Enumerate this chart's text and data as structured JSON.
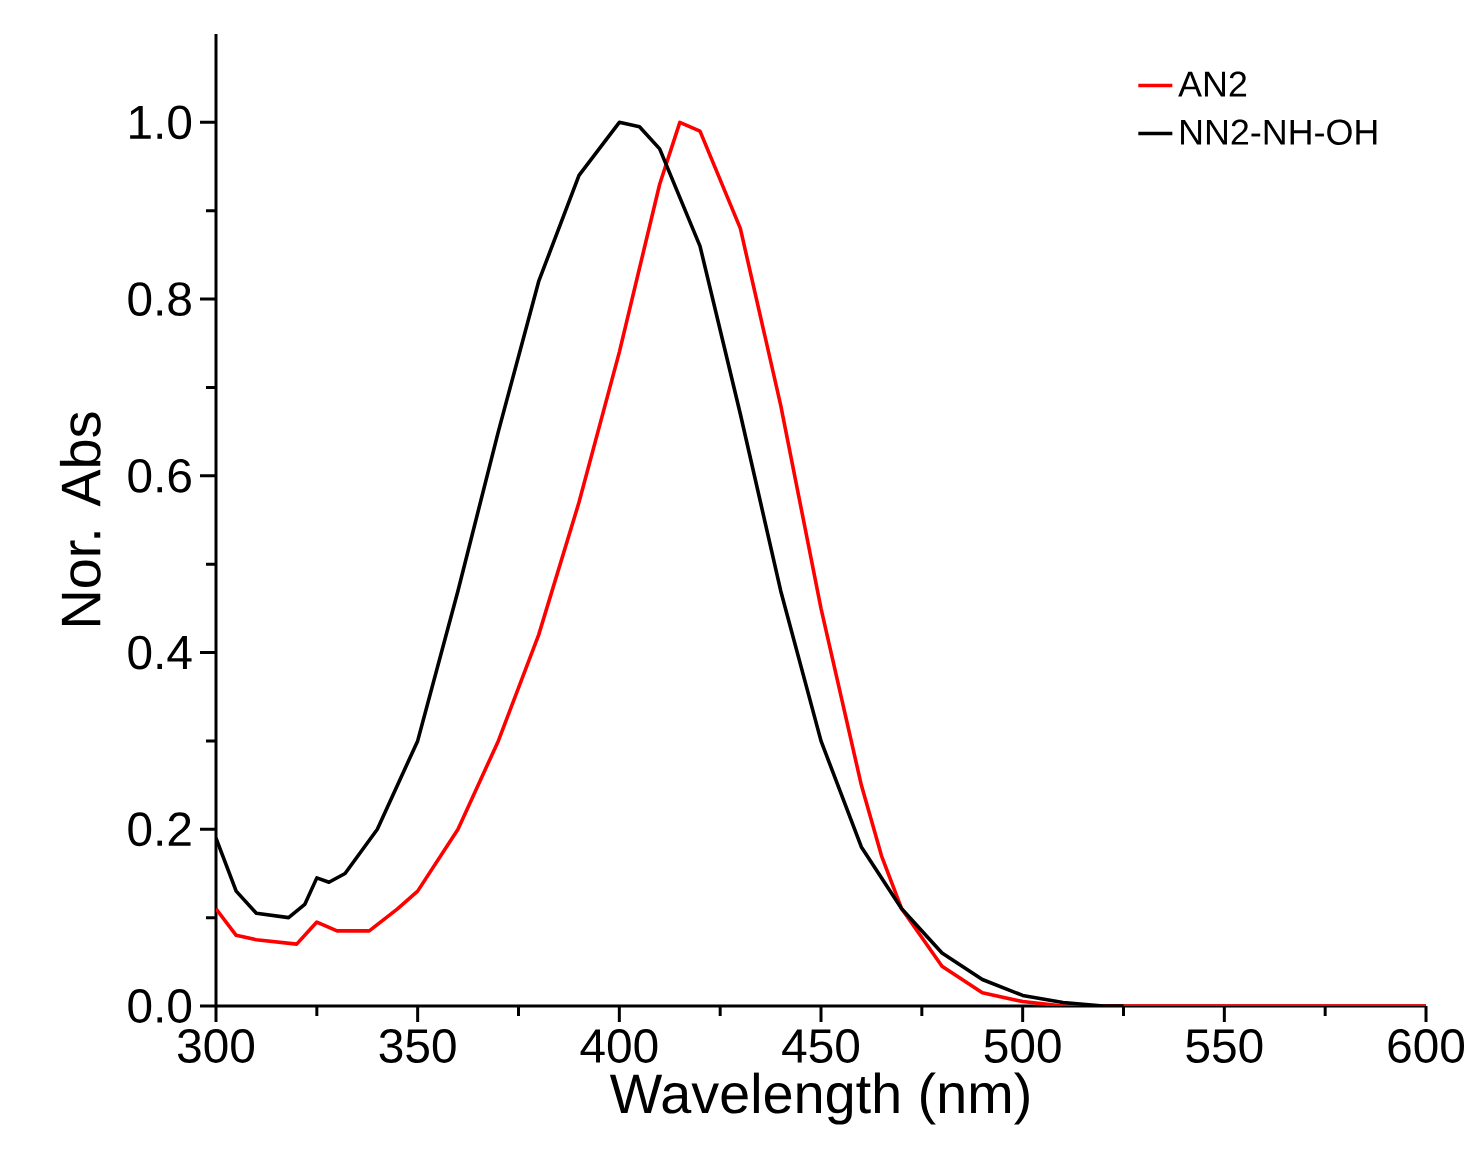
{
  "chart_data": {
    "type": "line",
    "xlabel": "Wavelength (nm)",
    "ylabel": "Nor. Abs",
    "xlim": [
      300,
      600
    ],
    "xticks": [
      300,
      350,
      400,
      450,
      500,
      550,
      600
    ],
    "ylim": [
      0,
      1.1
    ],
    "yticks": [
      {
        "value": 0,
        "label": "0.0"
      },
      {
        "value": 0.2,
        "label": "0.2"
      },
      {
        "value": 0.4,
        "label": "0.4"
      },
      {
        "value": 0.6,
        "label": "0.6"
      },
      {
        "value": 0.8,
        "label": "0.8"
      },
      {
        "value": 1.0,
        "label": "1.0"
      }
    ],
    "legend": "top right",
    "grid": false,
    "marker": "none",
    "line_style": "solid",
    "series": [
      {
        "name": "AN2",
        "color": "#ff0000",
        "x": [
          300,
          305,
          310,
          320,
          325,
          330,
          338,
          345,
          350,
          360,
          370,
          380,
          390,
          400,
          410,
          415,
          420,
          430,
          440,
          450,
          460,
          465,
          470,
          480,
          490,
          500,
          510,
          600
        ],
        "values": [
          0.11,
          0.08,
          0.075,
          0.07,
          0.095,
          0.085,
          0.085,
          0.11,
          0.13,
          0.2,
          0.3,
          0.42,
          0.57,
          0.74,
          0.93,
          1.0,
          0.99,
          0.88,
          0.68,
          0.45,
          0.25,
          0.17,
          0.11,
          0.045,
          0.015,
          0.005,
          0.0,
          0.0
        ]
      },
      {
        "name": "NN2-NH-OH",
        "color": "#000000",
        "x": [
          300,
          305,
          310,
          318,
          322,
          325,
          328,
          332,
          340,
          350,
          360,
          370,
          380,
          390,
          400,
          405,
          410,
          420,
          430,
          440,
          450,
          460,
          470,
          480,
          490,
          500,
          510,
          520,
          525
        ],
        "values": [
          0.19,
          0.13,
          0.105,
          0.1,
          0.115,
          0.145,
          0.14,
          0.15,
          0.2,
          0.3,
          0.47,
          0.65,
          0.82,
          0.94,
          1.0,
          0.995,
          0.97,
          0.86,
          0.67,
          0.47,
          0.3,
          0.18,
          0.11,
          0.06,
          0.03,
          0.012,
          0.004,
          0.0,
          0.0
        ]
      }
    ]
  }
}
